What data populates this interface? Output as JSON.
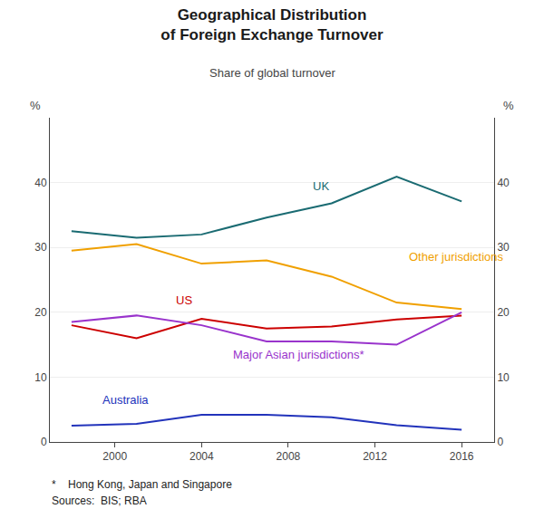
{
  "chart_data": {
    "type": "line",
    "title": "Geographical Distribution\nof Foreign Exchange Turnover",
    "subtitle": "Share of global turnover",
    "ylabel": "%",
    "y2label": "%",
    "notes": [
      "*    Hong Kong, Japan and Singapore",
      "Sources:  BIS; RBA"
    ],
    "x": [
      1998,
      2001,
      2004,
      2007,
      2010,
      2013,
      2016
    ],
    "series": [
      {
        "name": "UK",
        "color": "#1a6b72",
        "values": [
          32.5,
          31.5,
          32.0,
          34.6,
          36.8,
          40.9,
          37.1
        ]
      },
      {
        "name": "Other jurisdictions",
        "color": "#f0a000",
        "values": [
          29.5,
          30.5,
          27.5,
          28.0,
          25.5,
          21.5,
          20.5
        ]
      },
      {
        "name": "US",
        "color": "#cc0000",
        "values": [
          18.0,
          16.0,
          19.0,
          17.5,
          17.8,
          18.9,
          19.5
        ]
      },
      {
        "name": "Major Asian jurisdictions*",
        "color": "#9933cc",
        "values": [
          18.5,
          19.5,
          18.0,
          15.5,
          15.5,
          15.0,
          20.0
        ]
      },
      {
        "name": "Australia",
        "color": "#2233bb",
        "values": [
          2.5,
          2.8,
          4.2,
          4.2,
          3.8,
          2.6,
          1.9
        ]
      }
    ],
    "xlim": [
      1997.0,
      2017.5
    ],
    "xticks": [
      2000,
      2004,
      2008,
      2012,
      2016
    ],
    "ylim": [
      0,
      50
    ],
    "yticks": [
      0,
      10,
      20,
      30,
      40
    ],
    "y2lim": [
      0,
      50
    ],
    "y2ticks": [
      0,
      10,
      20,
      30,
      40
    ],
    "grid": true
  }
}
